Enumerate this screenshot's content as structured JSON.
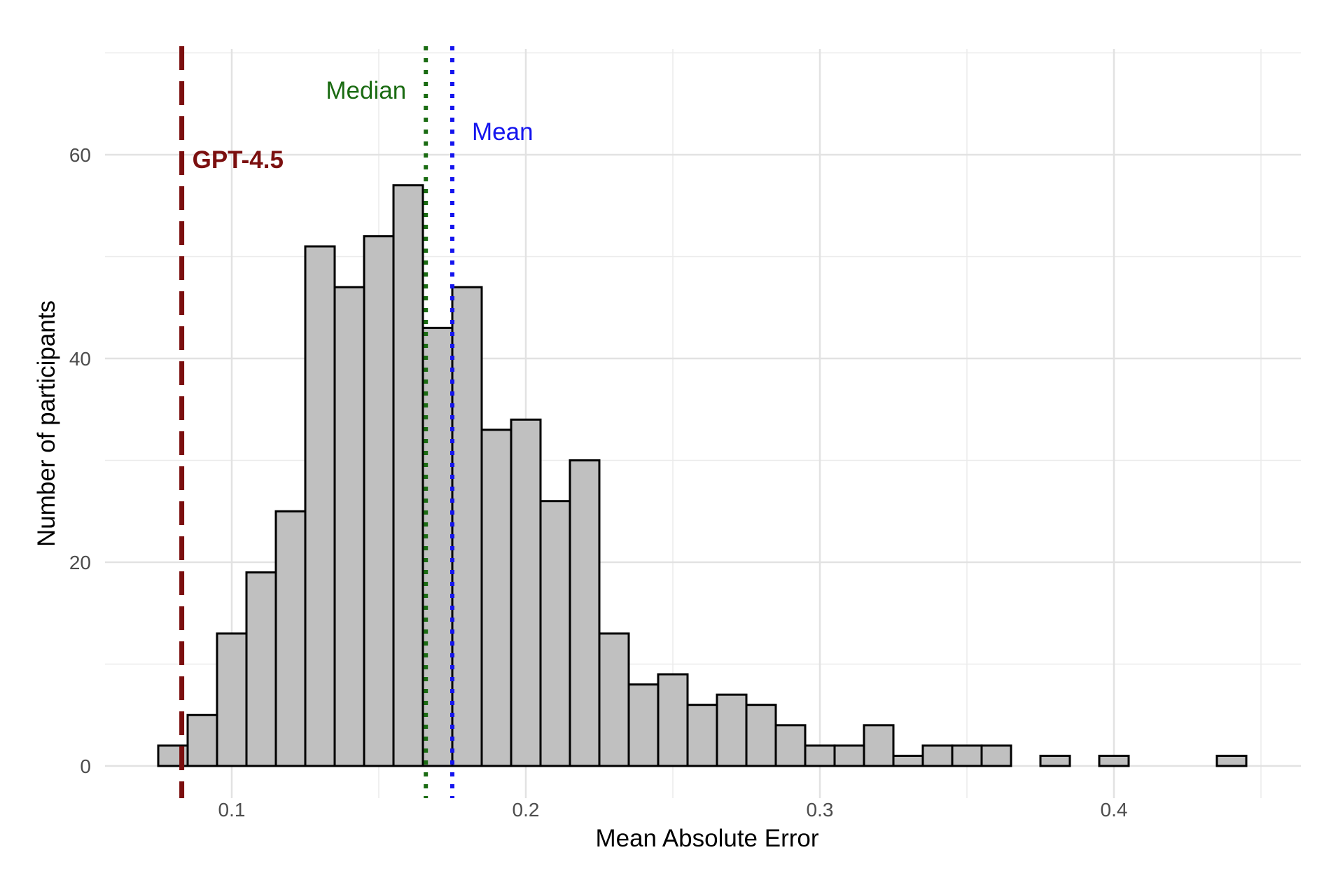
{
  "chart_data": {
    "type": "bar",
    "xlabel": "Mean Absolute Error",
    "ylabel": "Number of participants",
    "xlim": [
      0.06,
      0.465
    ],
    "ylim": [
      -3,
      70
    ],
    "x_ticks": [
      0.1,
      0.2,
      0.3,
      0.4
    ],
    "x_tick_labels": [
      "0.1",
      "0.2",
      "0.3",
      "0.4"
    ],
    "y_ticks": [
      0,
      20,
      40,
      60
    ],
    "y_tick_labels": [
      "0",
      "20",
      "40",
      "60"
    ],
    "y_minor_gridlines": [
      10,
      30,
      50,
      70
    ],
    "x_minor_gridlines": [
      0.05,
      0.15,
      0.25,
      0.35,
      0.45
    ],
    "grid": true,
    "bin_width": 0.01,
    "bin_starts": [
      0.075,
      0.085,
      0.095,
      0.105,
      0.115,
      0.125,
      0.135,
      0.145,
      0.155,
      0.165,
      0.175,
      0.185,
      0.195,
      0.205,
      0.215,
      0.225,
      0.235,
      0.245,
      0.255,
      0.265,
      0.275,
      0.285,
      0.295,
      0.305,
      0.315,
      0.325,
      0.335,
      0.345,
      0.355,
      0.365,
      0.375,
      0.385,
      0.395,
      0.405,
      0.415,
      0.425,
      0.435
    ],
    "counts": [
      2,
      5,
      13,
      19,
      25,
      51,
      47,
      52,
      57,
      43,
      47,
      33,
      34,
      26,
      30,
      13,
      8,
      9,
      6,
      7,
      6,
      4,
      2,
      2,
      4,
      1,
      2,
      2,
      2,
      0,
      1,
      0,
      1,
      0,
      0,
      0,
      1
    ],
    "bar_fill": "#c0c0c0",
    "bar_stroke": "#000000",
    "reference_lines": [
      {
        "label": "GPT-4.5",
        "x": 0.083,
        "color": "#7b0f0f",
        "style": "dashed",
        "bold": true
      },
      {
        "label": "Median",
        "x": 0.166,
        "color": "#1a6b12",
        "style": "dotted",
        "bold": false
      },
      {
        "label": "Mean",
        "x": 0.175,
        "color": "#1414ee",
        "style": "dotted",
        "bold": false
      }
    ]
  }
}
